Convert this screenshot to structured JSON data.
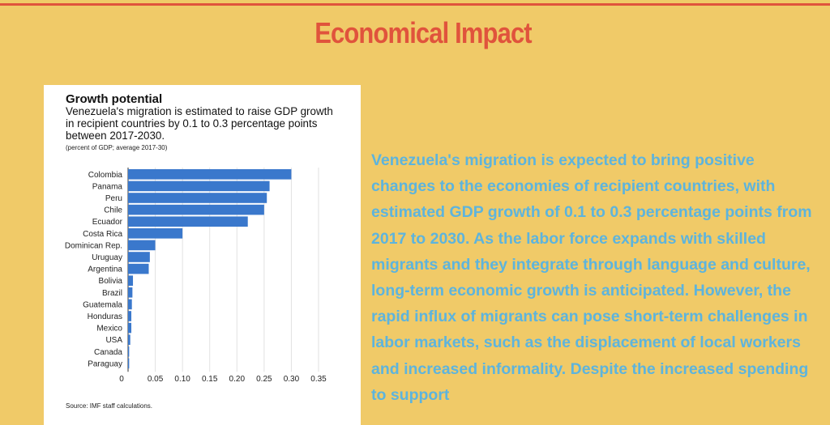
{
  "header": {
    "title": "Economical Impact",
    "title_color": "#e0533c",
    "rule_color": "#e0533c"
  },
  "colors": {
    "background": "#f0ca68",
    "body_text": "#5db4dd",
    "bar": "#3a78cc"
  },
  "chart_card": {
    "heading": "Growth potential",
    "subtitle": "Venezuela's migration is estimated to raise GDP growth in recipient countries by 0.1 to 0.3 percentage points between 2017-2030.",
    "note": "(percent of GDP; average 2017-30)",
    "source": "Source: IMF staff calculations."
  },
  "chart_data": {
    "type": "bar",
    "orientation": "horizontal",
    "title": "Growth potential",
    "subtitle": "Venezuela's migration is estimated to raise GDP growth in recipient countries by 0.1 to 0.3 percentage points between 2017-2030.",
    "note": "(percent of GDP; average 2017-30)",
    "categories": [
      "Colombia",
      "Panama",
      "Peru",
      "Chile",
      "Ecuador",
      "Costa Rica",
      "Dominican Rep.",
      "Uruguay",
      "Argentina",
      "Bolivia",
      "Brazil",
      "Guatemala",
      "Honduras",
      "Mexico",
      "USA",
      "Canada",
      "Paraguay"
    ],
    "values": [
      0.3,
      0.26,
      0.255,
      0.25,
      0.22,
      0.1,
      0.05,
      0.04,
      0.038,
      0.009,
      0.008,
      0.007,
      0.006,
      0.006,
      0.004,
      0.002,
      0.002
    ],
    "xlim": [
      0,
      0.35
    ],
    "xticks": [
      "0",
      "0.05",
      "0.10",
      "0.15",
      "0.20",
      "0.25",
      "0.30",
      "0.35"
    ],
    "xtick_values": [
      0,
      0.05,
      0.1,
      0.15,
      0.2,
      0.25,
      0.3,
      0.35
    ],
    "grid": true,
    "xlabel": "",
    "ylabel": ""
  },
  "body": {
    "paragraph": "Venezuela's migration is expected to bring positive changes to the economies of recipient countries, with estimated GDP growth of 0.1 to 0.3 percentage points from 2017 to 2030. As the labor force expands with skilled migrants and they integrate through language and culture, long-term economic growth is anticipated. However, the rapid influx of migrants can pose short-term challenges in labor markets, such as the displacement of local workers and increased informality. Despite the increased spending to support"
  }
}
